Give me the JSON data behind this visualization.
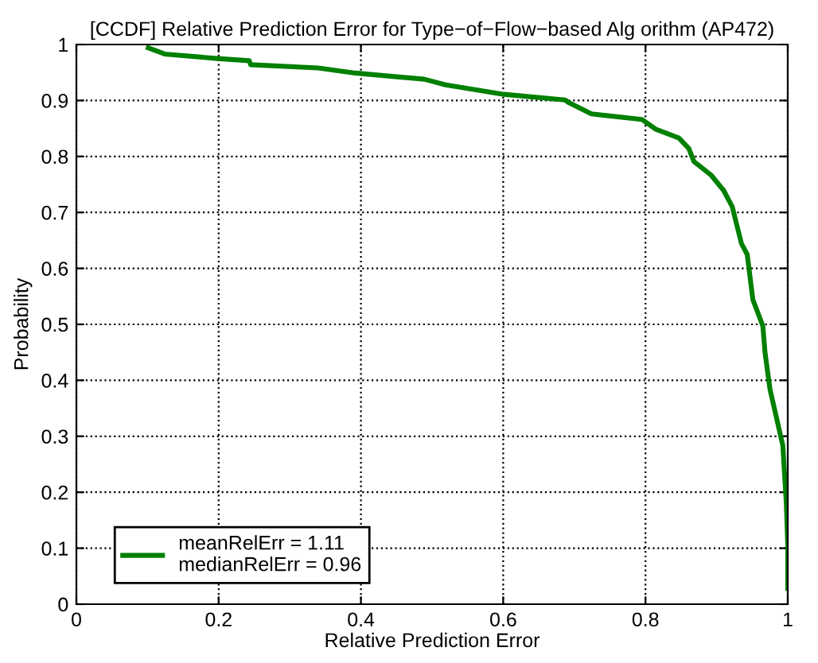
{
  "chart_data": {
    "type": "line",
    "title": "[CCDF] Relative Prediction Error for Type−of−Flow−based Alg orithm (AP472)",
    "xlabel": "Relative Prediction Error",
    "ylabel": "Probability",
    "series": [
      {
        "name": "meanRelErr = 1.11\nmedianRelErr = 0.96",
        "color": "#008000",
        "x": [
          0.101,
          0.124,
          0.198,
          0.243,
          0.245,
          0.34,
          0.392,
          0.489,
          0.519,
          0.601,
          0.687,
          0.691,
          0.724,
          0.795,
          0.814,
          0.847,
          0.861,
          0.868,
          0.892,
          0.91,
          0.922,
          0.935,
          0.943,
          0.951,
          0.965,
          0.968,
          0.975,
          0.993,
          0.998,
          1.0,
          1.0
        ],
        "values": [
          0.994,
          0.983,
          0.975,
          0.971,
          0.964,
          0.958,
          0.949,
          0.938,
          0.928,
          0.911,
          0.901,
          0.897,
          0.876,
          0.866,
          0.849,
          0.833,
          0.814,
          0.791,
          0.767,
          0.739,
          0.71,
          0.644,
          0.625,
          0.544,
          0.497,
          0.45,
          0.384,
          0.284,
          0.18,
          0.104,
          0.028
        ]
      }
    ],
    "xlim": [
      0,
      1
    ],
    "ylim": [
      0,
      1
    ],
    "xticks": [
      0,
      0.2,
      0.4,
      0.6,
      0.8,
      1
    ],
    "yticks": [
      0,
      0.1,
      0.2,
      0.3,
      0.4,
      0.5,
      0.6,
      0.7,
      0.8,
      0.9,
      1
    ],
    "grid": true,
    "legend": "bottom left",
    "line_style": "solid",
    "marker": "none"
  }
}
